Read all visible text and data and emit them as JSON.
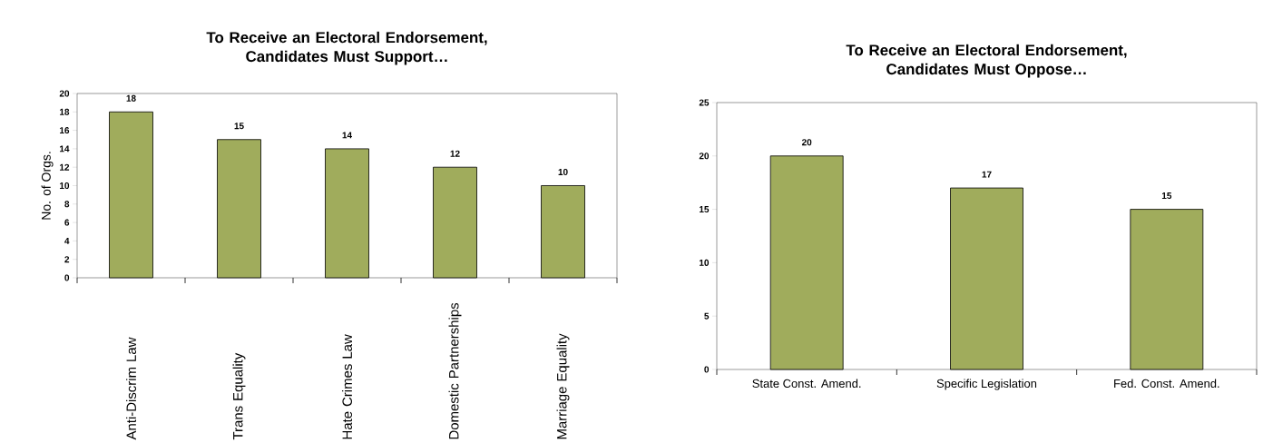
{
  "chart_data": [
    {
      "type": "bar",
      "title": "To Receive an Electoral Endorsement, Candidates Must Support…",
      "ylabel": "No. of Orgs.",
      "categories": [
        "Anti-Discrim Law",
        "Trans Equality",
        "Hate Crimes Law",
        "Domestic Partnerships",
        "Marriage Equality"
      ],
      "values": [
        18,
        15,
        14,
        12,
        10
      ],
      "color": "#a0ac5c",
      "ylim": [
        0,
        20
      ],
      "yticks": [
        0,
        2,
        4,
        6,
        8,
        10,
        12,
        14,
        16,
        18,
        20
      ],
      "data_labels": true
    },
    {
      "type": "bar",
      "title": "To Receive an Electoral Endorsement, Candidates Must Oppose…",
      "categories": [
        "State Const. Amend.",
        "Specific Legislation",
        "Fed. Const. Amend."
      ],
      "values": [
        20,
        17,
        15
      ],
      "color": "#a0ac5c",
      "ylim": [
        0,
        25
      ],
      "yticks": [
        0,
        5,
        10,
        15,
        20,
        25
      ],
      "data_labels": true
    }
  ]
}
